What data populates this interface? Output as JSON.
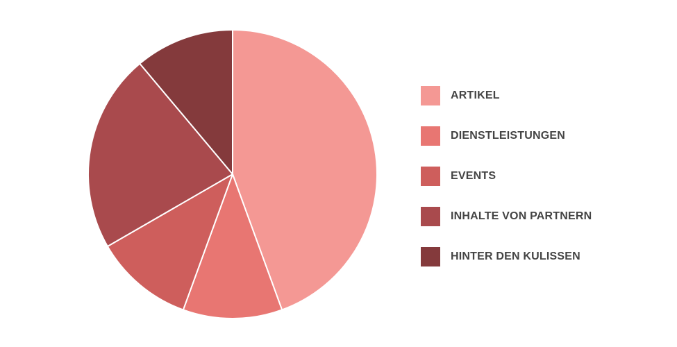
{
  "chart_data": {
    "type": "pie",
    "categories": [
      "ARTIKEL",
      "DIENSTLEISTUNGEN",
      "EVENTS",
      "INHALTE VON PARTNERN",
      "HINTER DEN KULISSEN"
    ],
    "values": [
      44.4,
      11.1,
      11.1,
      22.2,
      11.1
    ],
    "colors": [
      "#F49894",
      "#E87672",
      "#CE5E5C",
      "#A94A4D",
      "#843A3C"
    ],
    "legend_position": "right",
    "start_angle": "top, clockwise"
  }
}
